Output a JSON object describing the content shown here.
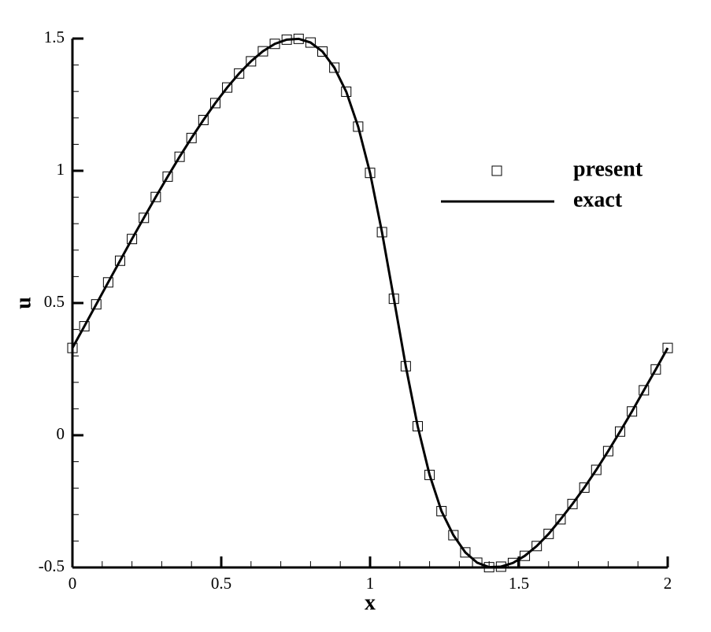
{
  "chart_data": {
    "type": "scatter-line",
    "xlabel": "x",
    "ylabel": "u",
    "xlim": [
      0,
      2
    ],
    "ylim": [
      -0.5,
      1.5
    ],
    "xticks": [
      0,
      0.5,
      1,
      1.5,
      2
    ],
    "yticks": [
      -0.5,
      0,
      0.5,
      1,
      1.5
    ],
    "xminorticks": [
      0.1,
      0.2,
      0.3,
      0.4,
      0.6,
      0.7,
      0.8,
      0.9,
      1.1,
      1.2,
      1.3,
      1.4,
      1.6,
      1.7,
      1.8,
      1.9
    ],
    "yminorticks": [
      -0.4,
      -0.3,
      -0.2,
      -0.1,
      0.1,
      0.2,
      0.3,
      0.4,
      0.6,
      0.7,
      0.8,
      0.9,
      1.1,
      1.2,
      1.3,
      1.4
    ],
    "x": [
      0,
      0.04,
      0.08,
      0.12,
      0.16,
      0.2,
      0.24,
      0.28,
      0.32,
      0.36,
      0.4,
      0.44,
      0.48,
      0.52,
      0.56,
      0.6,
      0.64,
      0.68,
      0.72,
      0.76,
      0.8,
      0.84,
      0.88,
      0.92,
      0.96,
      1.0,
      1.04,
      1.08,
      1.12,
      1.16,
      1.2,
      1.24,
      1.28,
      1.32,
      1.36,
      1.4,
      1.44,
      1.48,
      1.52,
      1.56,
      1.6,
      1.64,
      1.68,
      1.72,
      1.76,
      1.8,
      1.84,
      1.88,
      1.92,
      1.96,
      2.0
    ],
    "series": [
      {
        "name": "present",
        "marker": "square",
        "color": "#000000",
        "values": [
          0.33,
          0.412,
          0.495,
          0.578,
          0.66,
          0.742,
          0.822,
          0.901,
          0.978,
          1.053,
          1.124,
          1.192,
          1.256,
          1.315,
          1.368,
          1.414,
          1.452,
          1.48,
          1.496,
          1.499,
          1.485,
          1.451,
          1.39,
          1.299,
          1.167,
          0.992,
          0.768,
          0.516,
          0.261,
          0.034,
          -0.15,
          -0.287,
          -0.378,
          -0.443,
          -0.482,
          -0.499,
          -0.497,
          -0.483,
          -0.456,
          -0.419,
          -0.373,
          -0.318,
          -0.26,
          -0.198,
          -0.131,
          -0.06,
          0.014,
          0.09,
          0.17,
          0.249,
          0.33
        ]
      },
      {
        "name": "exact",
        "marker": "line",
        "color": "#000000",
        "values": [
          0.33,
          0.412,
          0.495,
          0.578,
          0.66,
          0.742,
          0.822,
          0.901,
          0.978,
          1.053,
          1.124,
          1.192,
          1.256,
          1.315,
          1.368,
          1.414,
          1.452,
          1.48,
          1.496,
          1.499,
          1.485,
          1.451,
          1.39,
          1.299,
          1.167,
          0.992,
          0.768,
          0.516,
          0.261,
          0.034,
          -0.15,
          -0.287,
          -0.378,
          -0.443,
          -0.482,
          -0.499,
          -0.497,
          -0.483,
          -0.456,
          -0.419,
          -0.373,
          -0.318,
          -0.26,
          -0.198,
          -0.131,
          -0.06,
          0.014,
          0.09,
          0.17,
          0.249,
          0.33
        ]
      }
    ]
  }
}
